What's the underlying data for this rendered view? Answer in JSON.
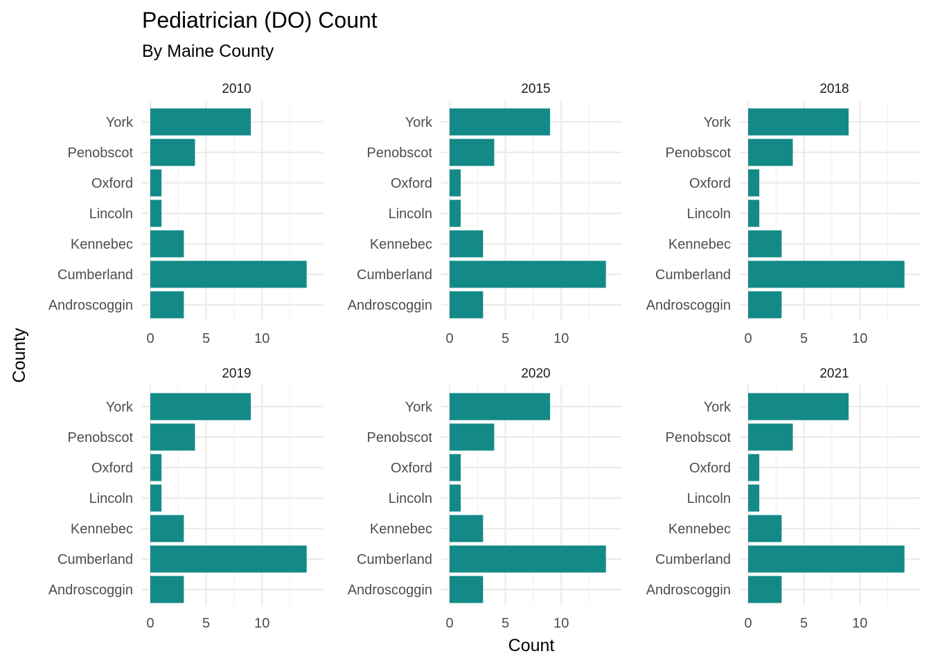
{
  "chart_data": {
    "type": "bar",
    "orientation": "horizontal",
    "title": "Pediatrician (DO) Count",
    "subtitle": "By Maine County",
    "xlabel": "Count",
    "ylabel": "County",
    "categories": [
      "Androscoggin",
      "Cumberland",
      "Kennebec",
      "Lincoln",
      "Oxford",
      "Penobscot",
      "York"
    ],
    "xlim": [
      0,
      14.7
    ],
    "x_ticks": [
      0,
      5,
      10
    ],
    "grid": true,
    "legend": "none",
    "bar_color": "#138A87",
    "facets": [
      {
        "name": "2010",
        "values": [
          3,
          14,
          3,
          1,
          1,
          4,
          9
        ]
      },
      {
        "name": "2015",
        "values": [
          3,
          14,
          3,
          1,
          1,
          4,
          9
        ]
      },
      {
        "name": "2018",
        "values": [
          3,
          14,
          3,
          1,
          1,
          4,
          9
        ]
      },
      {
        "name": "2019",
        "values": [
          3,
          14,
          3,
          1,
          1,
          4,
          9
        ]
      },
      {
        "name": "2020",
        "values": [
          3,
          14,
          3,
          1,
          1,
          4,
          9
        ]
      },
      {
        "name": "2021",
        "values": [
          3,
          14,
          3,
          1,
          1,
          4,
          9
        ]
      }
    ]
  }
}
